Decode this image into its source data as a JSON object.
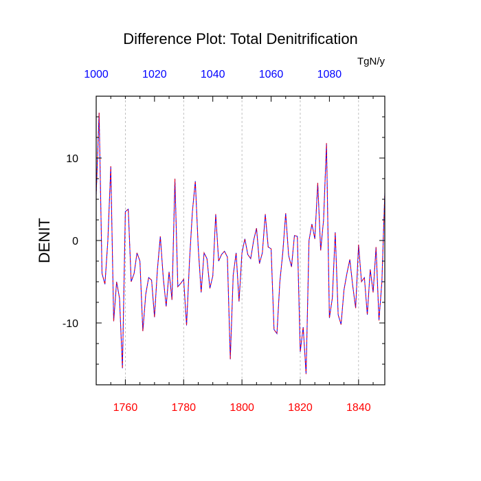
{
  "chart_data": {
    "type": "line",
    "title": "Difference Plot: Total Denitrification",
    "units": "TgN/y",
    "ylabel": "DENIT",
    "xlabel_bottom": "",
    "xlabel_top": "",
    "bottom_axis": {
      "range": [
        1750,
        1849
      ],
      "ticks": [
        1760,
        1780,
        1800,
        1820,
        1840
      ],
      "color": "#ff0000"
    },
    "top_axis": {
      "range": [
        1000,
        1099
      ],
      "ticks": [
        1000,
        1020,
        1040,
        1060,
        1080
      ],
      "color": "#0000ff"
    },
    "ylim": [
      -17.5,
      17.5
    ],
    "y_ticks": [
      -10,
      0,
      10
    ],
    "grid": "vertical dashed at major bottom ticks",
    "series": [
      {
        "color_primary": "#0000ff",
        "color_overlay": "#ff0000",
        "style": "dashed",
        "x": [
          1750,
          1751,
          1752,
          1753,
          1754,
          1755,
          1756,
          1757,
          1758,
          1759,
          1760,
          1761,
          1762,
          1763,
          1764,
          1765,
          1766,
          1767,
          1768,
          1769,
          1770,
          1771,
          1772,
          1773,
          1774,
          1775,
          1776,
          1777,
          1778,
          1779,
          1780,
          1781,
          1782,
          1783,
          1784,
          1785,
          1786,
          1787,
          1788,
          1789,
          1790,
          1791,
          1792,
          1793,
          1794,
          1795,
          1796,
          1797,
          1798,
          1799,
          1800,
          1801,
          1802,
          1803,
          1804,
          1805,
          1806,
          1807,
          1808,
          1809,
          1810,
          1811,
          1812,
          1813,
          1814,
          1815,
          1816,
          1817,
          1818,
          1819,
          1820,
          1821,
          1822,
          1823,
          1824,
          1825,
          1826,
          1827,
          1828,
          1829,
          1830,
          1831,
          1832,
          1833,
          1834,
          1835,
          1836,
          1837,
          1838,
          1839,
          1840,
          1841,
          1842,
          1843,
          1844,
          1845,
          1846,
          1847,
          1848,
          1849
        ],
        "y": [
          5.5,
          15.5,
          -4,
          -5.3,
          0,
          9,
          -9.8,
          -5,
          -7,
          -15.5,
          3.5,
          3.8,
          -5,
          -4,
          -1.5,
          -2.5,
          -11,
          -6.5,
          -4.5,
          -4.8,
          -9.3,
          -3.5,
          0.5,
          -4.5,
          -8,
          -3.8,
          -7.2,
          7.5,
          -5.6,
          -5.2,
          -4.7,
          -10.3,
          -2.5,
          3.5,
          7.2,
          -0.8,
          -6.3,
          -1.5,
          -2.2,
          -5.8,
          -4.3,
          3.2,
          -2.5,
          -1.7,
          -1.3,
          -2,
          -14.4,
          -4.2,
          -1.5,
          -7.4,
          -1.5,
          0.2,
          -1.7,
          -2.2,
          0,
          1.5,
          -2.8,
          -1.5,
          3.2,
          -0.8,
          -1,
          -10.8,
          -11.3,
          -5,
          -1.5,
          3.3,
          -1.8,
          -3.2,
          0.6,
          0.5,
          -13.5,
          -10.5,
          -16.2,
          0,
          2,
          0.2,
          7,
          -1.2,
          2.5,
          11.8,
          -9.4,
          -7,
          1,
          -9,
          -10.2,
          -6,
          -4,
          -2.3,
          -5.5,
          -8.2,
          -0.5,
          -5,
          -4.5,
          -9,
          -3.5,
          -6.3,
          -0.8,
          -9.7,
          -5,
          5.8
        ]
      }
    ]
  }
}
